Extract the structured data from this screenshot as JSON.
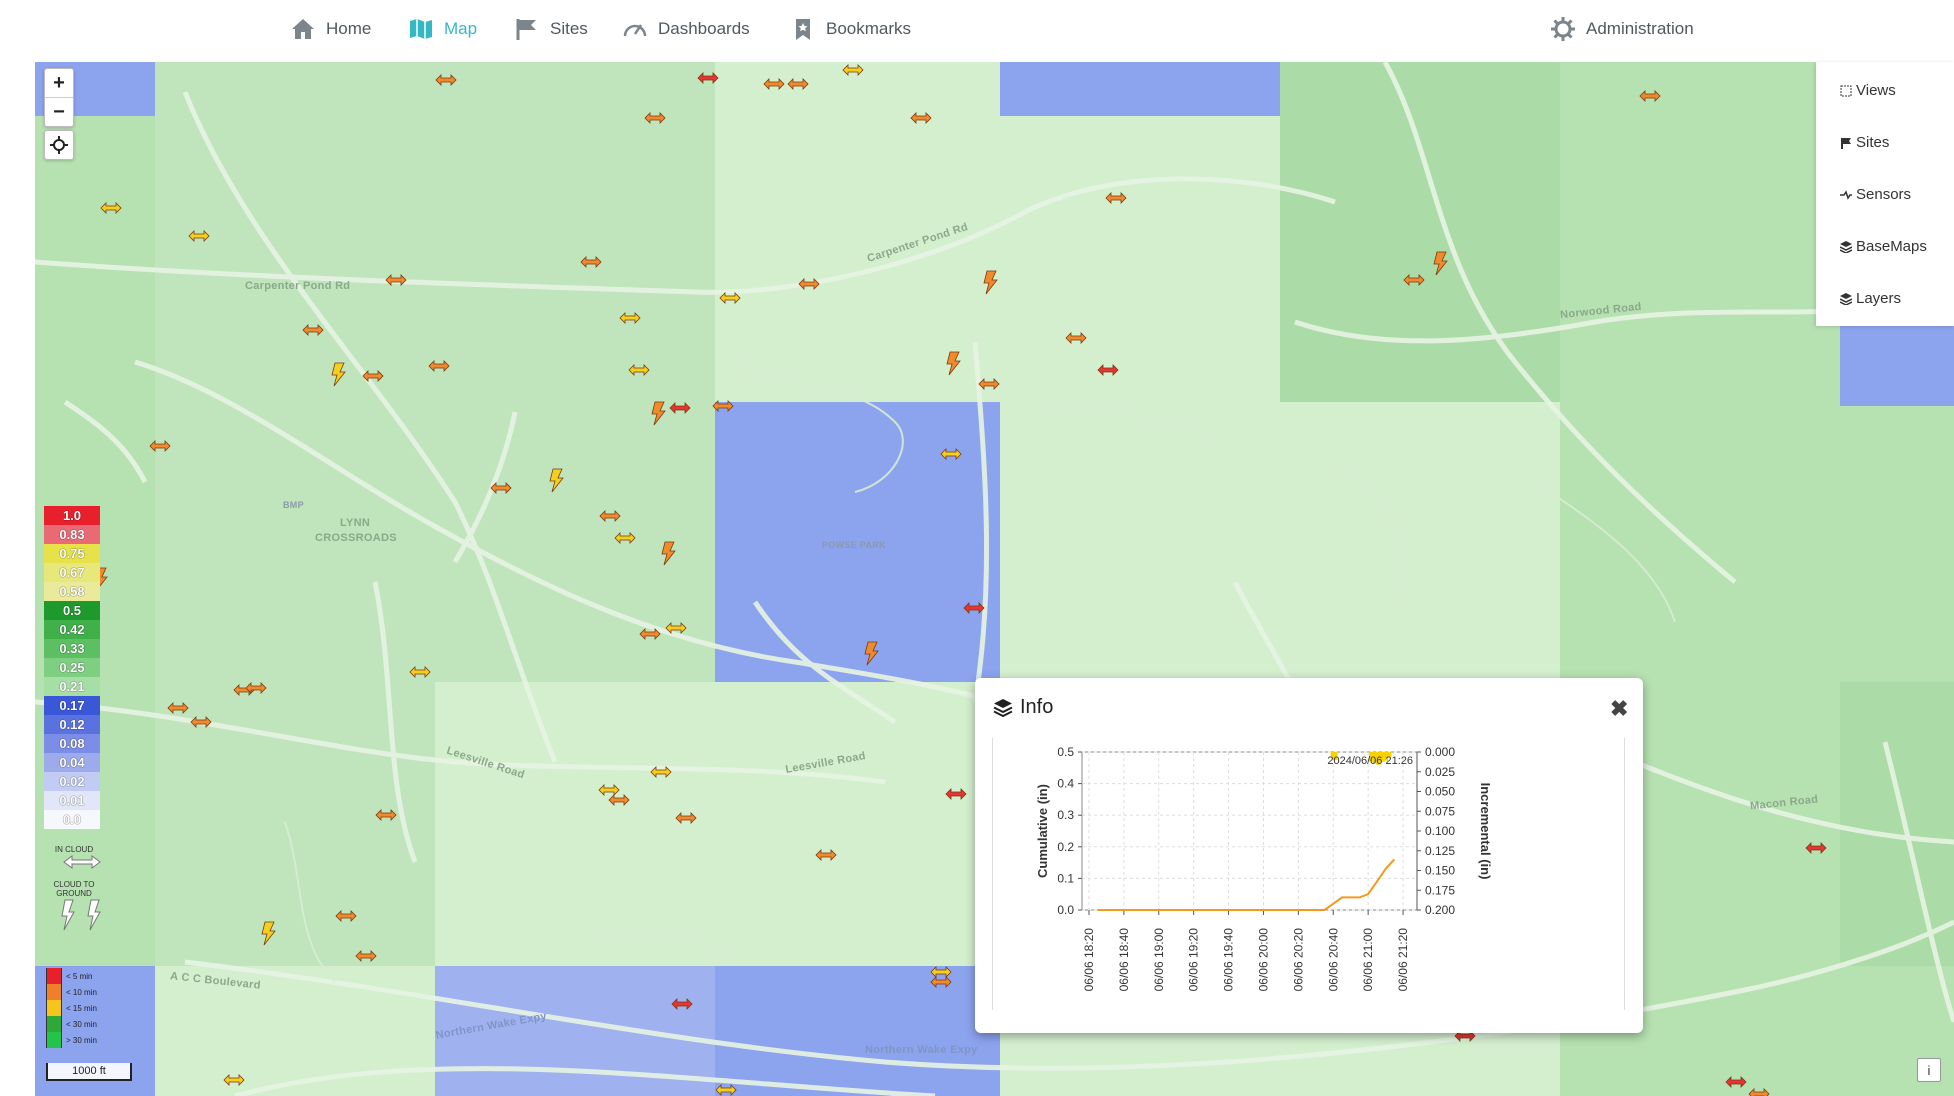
{
  "nav": {
    "items": [
      {
        "label": "Home",
        "icon": "home-icon",
        "active": false
      },
      {
        "label": "Map",
        "icon": "map-icon",
        "active": true
      },
      {
        "label": "Sites",
        "icon": "flag-icon",
        "active": false
      },
      {
        "label": "Dashboards",
        "icon": "gauge-icon",
        "active": false
      },
      {
        "label": "Bookmarks",
        "icon": "bookmark-icon",
        "active": false
      }
    ],
    "admin": {
      "label": "Administration",
      "icon": "gear-icon"
    }
  },
  "map_controls": {
    "zoom_in": "+",
    "zoom_out": "−",
    "locate_icon": "locate-icon"
  },
  "right_panel": {
    "items": [
      {
        "label": "Views",
        "icon": "views-icon"
      },
      {
        "label": "Sites",
        "icon": "flag-icon"
      },
      {
        "label": "Sensors",
        "icon": "sensor-icon"
      },
      {
        "label": "BaseMaps",
        "icon": "layers-icon"
      },
      {
        "label": "Layers",
        "icon": "layers-icon"
      }
    ]
  },
  "map_labels": {
    "carpenter_pond": "Carpenter Pond Rd",
    "carpenter_pond_2": "Carpenter Pond Rd",
    "lynn": "LYNN",
    "crossroads": "CROSSROADS",
    "leesville": "Leesville Road",
    "leesville_2": "Leesville Road",
    "norwood": "Norwood Road",
    "northern_wake": "Northern Wake Expy",
    "northern_wake_2": "Northern Wake Expy",
    "ponse_park": "POWSE PARK",
    "acc": "A C C Boulevard",
    "macon": "Macon Road",
    "bmp": "BMP"
  },
  "legend": {
    "values": [
      "1.0",
      "0.83",
      "0.75",
      "0.67",
      "0.58",
      "0.5",
      "0.42",
      "0.33",
      "0.25",
      "0.21",
      "0.17",
      "0.12",
      "0.08",
      "0.04",
      "0.02",
      "0.01",
      "0.0"
    ],
    "colors": [
      "#e8202c",
      "#e96a74",
      "#e7e14a",
      "#e8e87a",
      "#eaea9a",
      "#1e9a2c",
      "#3fb04a",
      "#5cbf62",
      "#7fcf83",
      "#a6dfa6",
      "#3a57d8",
      "#5a72e0",
      "#7b8de6",
      "#9dabed",
      "#c2cbf3",
      "#e1e6f9",
      "#f7f8fd"
    ],
    "in_cloud": "IN CLOUD",
    "cloud_to_ground": "CLOUD TO GROUND",
    "age": [
      {
        "label": "< 5 min",
        "color": "#e8202c"
      },
      {
        "label": "< 10 min",
        "color": "#f07f2c"
      },
      {
        "label": "< 15 min",
        "color": "#f5c51e"
      },
      {
        "label": "< 30 min",
        "color": "#2fa83a"
      },
      {
        "label": "> 30 min",
        "color": "#22c44a"
      }
    ],
    "scale": "1000 ft"
  },
  "info": {
    "title": "Info",
    "close": "✖",
    "icon": "layers-icon"
  },
  "chart_data": {
    "type": "line",
    "title": "",
    "annotation": "2024/06/06 21:26",
    "x": [
      "06/06 18:20",
      "06/06 18:40",
      "06/06 19:00",
      "06/06 19:20",
      "06/06 19:40",
      "06/06 20:00",
      "06/06 20:20",
      "06/06 20:40",
      "06/06 21:00",
      "06/06 21:20"
    ],
    "ylabel": "Cumulative (in)",
    "ylabel2": "Incremental (in)",
    "ylim": [
      0,
      0.5
    ],
    "y2lim": [
      0.2,
      0.0
    ],
    "yticks": [
      "0.0",
      "0.1",
      "0.2",
      "0.3",
      "0.4",
      "0.5"
    ],
    "y2ticks": [
      "0.000",
      "0.025",
      "0.050",
      "0.075",
      "0.100",
      "0.125",
      "0.150",
      "0.175",
      "0.200"
    ],
    "series": [
      {
        "name": "",
        "type": "line",
        "color": "#f39a1e",
        "points": [
          [
            "06/06 18:25",
            0.0
          ],
          [
            "06/06 20:35",
            0.0
          ],
          [
            "06/06 20:40",
            0.02
          ],
          [
            "06/06 20:45",
            0.04
          ],
          [
            "06/06 20:55",
            0.04
          ],
          [
            "06/06 21:00",
            0.05
          ],
          [
            "06/06 21:05",
            0.09
          ],
          [
            "06/06 21:10",
            0.13
          ],
          [
            "06/06 21:15",
            0.16
          ]
        ]
      },
      {
        "name": "",
        "type": "bar",
        "color": "#f5d200",
        "points": [
          [
            "06/06 20:40",
            0.007
          ],
          [
            "06/06 20:41",
            0.01
          ],
          [
            "06/06 21:02",
            0.012
          ],
          [
            "06/06 21:04",
            0.014
          ],
          [
            "06/06 21:06",
            0.016
          ],
          [
            "06/06 21:08",
            0.012
          ],
          [
            "06/06 21:10",
            0.011
          ],
          [
            "06/06 21:12",
            0.006
          ]
        ]
      }
    ],
    "grid": true
  },
  "corner_info": "i"
}
